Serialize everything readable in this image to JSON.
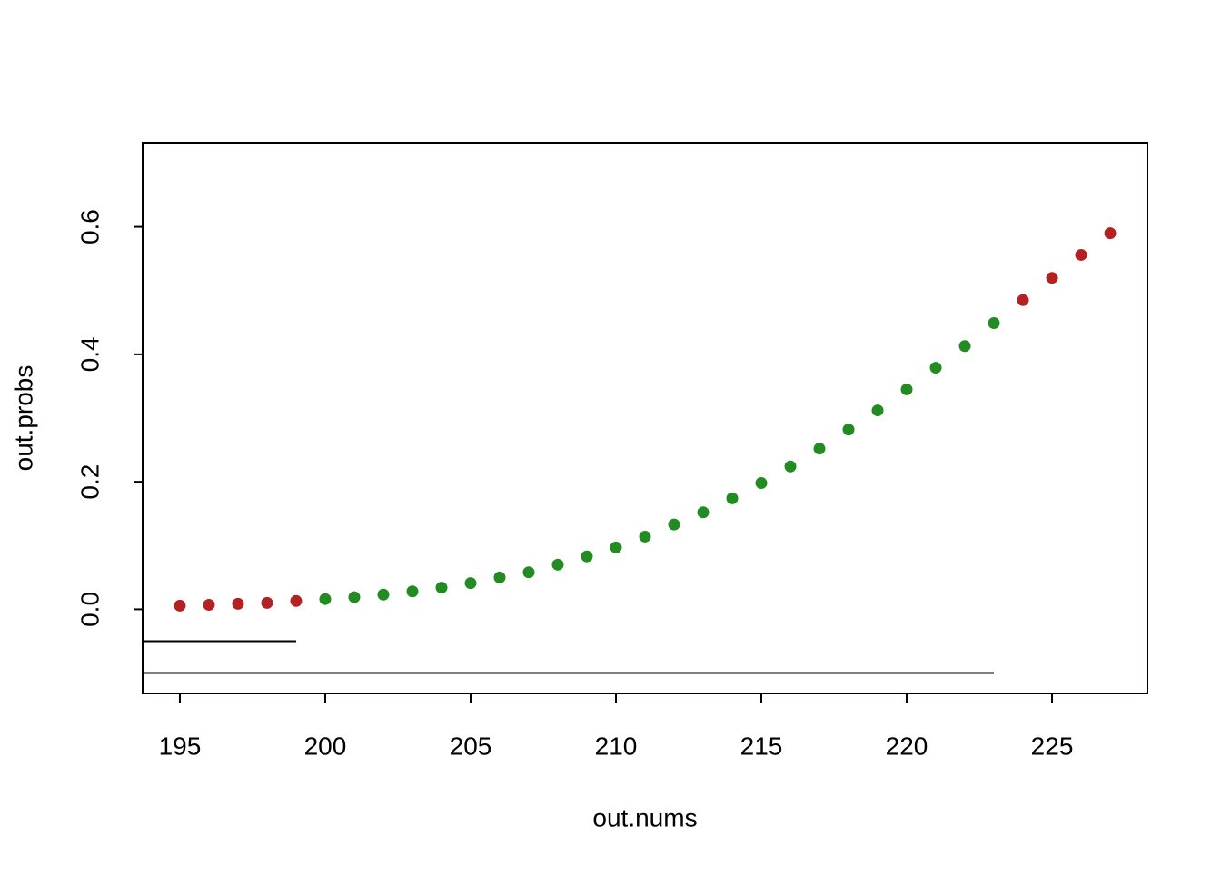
{
  "chart_data": {
    "type": "scatter",
    "x_label": "out.nums",
    "y_label": "out.probs",
    "x": [
      195,
      196,
      197,
      198,
      199,
      200,
      201,
      202,
      203,
      204,
      205,
      206,
      207,
      208,
      209,
      210,
      211,
      212,
      213,
      214,
      215,
      216,
      217,
      218,
      219,
      220,
      221,
      222,
      223,
      224,
      225,
      226,
      227
    ],
    "values": [
      0.0057,
      0.007,
      0.0086,
      0.01,
      0.013,
      0.016,
      0.019,
      0.023,
      0.028,
      0.034,
      0.041,
      0.05,
      0.058,
      0.07,
      0.083,
      0.097,
      0.114,
      0.133,
      0.152,
      0.174,
      0.198,
      0.224,
      0.252,
      0.282,
      0.312,
      0.345,
      0.379,
      0.413,
      0.449,
      0.485,
      0.52,
      0.556,
      0.59
    ],
    "point_colors": [
      "#b22222",
      "#b22222",
      "#b22222",
      "#b22222",
      "#b22222",
      "#228b22",
      "#228b22",
      "#228b22",
      "#228b22",
      "#228b22",
      "#228b22",
      "#228b22",
      "#228b22",
      "#228b22",
      "#228b22",
      "#228b22",
      "#228b22",
      "#228b22",
      "#228b22",
      "#228b22",
      "#228b22",
      "#228b22",
      "#228b22",
      "#228b22",
      "#228b22",
      "#228b22",
      "#228b22",
      "#228b22",
      "#228b22",
      "#b22222",
      "#b22222",
      "#b22222",
      "#b22222"
    ],
    "segments": [
      {
        "x": [
          193.72,
          199
        ],
        "y": -0.05
      },
      {
        "x": [
          193.72,
          223
        ],
        "y": -0.1
      }
    ],
    "xlim": [
      193.72,
      228.28
    ],
    "ylim": [
      -0.132,
      0.732
    ],
    "xticks": [
      195,
      200,
      205,
      210,
      215,
      220,
      225
    ],
    "yticks": [
      {
        "value": 0,
        "label": "0.0"
      },
      0.2,
      0.4,
      0.6
    ]
  }
}
